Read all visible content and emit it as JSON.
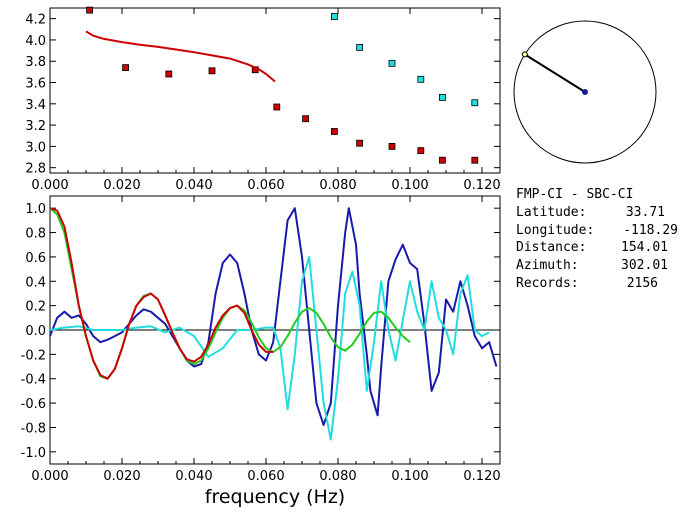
{
  "info": {
    "title": "FMP-CI - SBC-CI",
    "latitude_label": "Latitude:",
    "latitude": "33.71",
    "longitude_label": "Longitude:",
    "longitude": "-118.29",
    "distance_label": "Distance:",
    "distance": "154.01",
    "azimuth_label": "Azimuth:",
    "azimuth": "302.01",
    "records_label": "Records:",
    "records": "2156"
  },
  "compass": {
    "azimuth_deg": 302.01
  },
  "colors": {
    "red": "#cc0000",
    "cyan": "#22dddd",
    "blue": "#1a1aaa",
    "green": "#22cc22",
    "axis": "#000000"
  },
  "chart_data": [
    {
      "type": "scatter",
      "xlim": [
        0,
        0.125
      ],
      "ylim": [
        2.75,
        4.3
      ],
      "xticks": [
        "0.000",
        "0.020",
        "0.040",
        "0.060",
        "0.080",
        "0.100",
        "0.120"
      ],
      "yticks": [
        "2.8",
        "3.0",
        "3.2",
        "3.4",
        "3.6",
        "3.8",
        "4.0",
        "4.2"
      ],
      "series": [
        {
          "color": "red",
          "kind": "points",
          "x": [
            0.011,
            0.021,
            0.033,
            0.045,
            0.057,
            0.063,
            0.071,
            0.079,
            0.086,
            0.095,
            0.103,
            0.109,
            0.118
          ],
          "y": [
            4.28,
            3.74,
            3.68,
            3.71,
            3.72,
            3.37,
            3.26,
            3.14,
            3.03,
            3.0,
            2.96,
            2.87,
            2.87
          ]
        },
        {
          "color": "cyan",
          "kind": "points",
          "x": [
            0.079,
            0.086,
            0.095,
            0.103,
            0.109,
            0.118
          ],
          "y": [
            4.22,
            3.93,
            3.78,
            3.63,
            3.46,
            3.41
          ]
        },
        {
          "color": "red",
          "kind": "line",
          "x": [
            0.01,
            0.012,
            0.015,
            0.02,
            0.025,
            0.03,
            0.035,
            0.04,
            0.045,
            0.05,
            0.055,
            0.058,
            0.06,
            0.0625
          ],
          "y": [
            4.08,
            4.04,
            4.01,
            3.98,
            3.955,
            3.935,
            3.91,
            3.885,
            3.855,
            3.825,
            3.77,
            3.725,
            3.68,
            3.61
          ]
        }
      ]
    },
    {
      "type": "line",
      "xlabel": "frequency (Hz)",
      "xlim": [
        0,
        0.125
      ],
      "ylim": [
        -1.1,
        1.1
      ],
      "xticks": [
        "0.000",
        "0.020",
        "0.040",
        "0.060",
        "0.080",
        "0.100",
        "0.120"
      ],
      "yticks": [
        "-1.0",
        "-0.8",
        "-0.6",
        "-0.4",
        "-0.2",
        "0.0",
        "0.2",
        "0.4",
        "0.6",
        "0.8",
        "1.0"
      ],
      "series": [
        {
          "color": "blue",
          "x": [
            0,
            0.002,
            0.004,
            0.006,
            0.008,
            0.01,
            0.012,
            0.014,
            0.016,
            0.018,
            0.02,
            0.022,
            0.024,
            0.026,
            0.028,
            0.03,
            0.032,
            0.034,
            0.036,
            0.038,
            0.04,
            0.042,
            0.044,
            0.046,
            0.048,
            0.05,
            0.052,
            0.054,
            0.056,
            0.058,
            0.06,
            0.062,
            0.064,
            0.066,
            0.068,
            0.07,
            0.072,
            0.074,
            0.076,
            0.078,
            0.08,
            0.082,
            0.083,
            0.085,
            0.086,
            0.088,
            0.089,
            0.091,
            0.092,
            0.094,
            0.096,
            0.098,
            0.1,
            0.102,
            0.104,
            0.106,
            0.108,
            0.11,
            0.112,
            0.114,
            0.116,
            0.118,
            0.12,
            0.122,
            0.124
          ],
          "y": [
            -0.05,
            0.1,
            0.15,
            0.1,
            0.12,
            0.05,
            -0.05,
            -0.1,
            -0.08,
            -0.05,
            -0.02,
            0.05,
            0.12,
            0.17,
            0.15,
            0.1,
            0.05,
            -0.05,
            -0.15,
            -0.25,
            -0.3,
            -0.28,
            -0.1,
            0.3,
            0.55,
            0.62,
            0.55,
            0.3,
            0.0,
            -0.2,
            -0.25,
            -0.1,
            0.4,
            0.9,
            1.0,
            0.6,
            0.0,
            -0.6,
            -0.78,
            -0.6,
            0.2,
            0.8,
            1.0,
            0.7,
            0.3,
            -0.2,
            -0.5,
            -0.7,
            -0.3,
            0.4,
            0.58,
            0.7,
            0.55,
            0.5,
            0.05,
            -0.5,
            -0.35,
            0.25,
            0.15,
            0.4,
            0.2,
            -0.05,
            -0.15,
            -0.1,
            -0.3
          ]
        },
        {
          "color": "cyan",
          "x": [
            0,
            0.004,
            0.008,
            0.012,
            0.016,
            0.02,
            0.024,
            0.028,
            0.032,
            0.036,
            0.04,
            0.044,
            0.048,
            0.052,
            0.056,
            0.06,
            0.062,
            0.064,
            0.066,
            0.068,
            0.07,
            0.072,
            0.074,
            0.076,
            0.078,
            0.08,
            0.082,
            0.084,
            0.086,
            0.088,
            0.09,
            0.092,
            0.094,
            0.096,
            0.098,
            0.1,
            0.102,
            0.104,
            0.106,
            0.108,
            0.11,
            0.112,
            0.114,
            0.116,
            0.118,
            0.12,
            0.122
          ],
          "y": [
            0.0,
            0.02,
            0.03,
            0.0,
            0.0,
            0.0,
            0.02,
            0.03,
            -0.02,
            0.02,
            -0.05,
            -0.22,
            -0.15,
            0.0,
            0.0,
            0.02,
            0.02,
            -0.15,
            -0.65,
            -0.2,
            0.4,
            0.6,
            0.0,
            -0.6,
            -0.9,
            -0.4,
            0.3,
            0.48,
            0.2,
            -0.5,
            -0.1,
            0.4,
            0.0,
            -0.25,
            0.08,
            0.4,
            0.15,
            0.0,
            0.4,
            0.1,
            0.0,
            -0.2,
            0.3,
            0.45,
            0.0,
            -0.05,
            -0.02
          ]
        },
        {
          "color": "green",
          "x": [
            0,
            0.002,
            0.004,
            0.006,
            0.008,
            0.01,
            0.012,
            0.014,
            0.016,
            0.018,
            0.02,
            0.022,
            0.024,
            0.026,
            0.028,
            0.03,
            0.032,
            0.034,
            0.036,
            0.038,
            0.04,
            0.042,
            0.044,
            0.046,
            0.048,
            0.05,
            0.052,
            0.054,
            0.056,
            0.058,
            0.06,
            0.062,
            0.064,
            0.066,
            0.068,
            0.07,
            0.072,
            0.074,
            0.076,
            0.078,
            0.08,
            0.082,
            0.084,
            0.086,
            0.088,
            0.09,
            0.092,
            0.094,
            0.096,
            0.098,
            0.1
          ],
          "y": [
            1.0,
            0.95,
            0.8,
            0.5,
            0.2,
            -0.05,
            -0.25,
            -0.38,
            -0.4,
            -0.32,
            -0.15,
            0.05,
            0.2,
            0.28,
            0.3,
            0.25,
            0.12,
            -0.02,
            -0.15,
            -0.25,
            -0.28,
            -0.25,
            -0.15,
            -0.02,
            0.1,
            0.18,
            0.2,
            0.16,
            0.06,
            -0.06,
            -0.15,
            -0.18,
            -0.14,
            -0.05,
            0.06,
            0.15,
            0.18,
            0.14,
            0.05,
            -0.06,
            -0.14,
            -0.17,
            -0.12,
            -0.03,
            0.07,
            0.14,
            0.15,
            0.1,
            0.02,
            -0.05,
            -0.1
          ]
        },
        {
          "color": "red",
          "x": [
            0,
            0.002,
            0.004,
            0.006,
            0.008,
            0.01,
            0.012,
            0.014,
            0.016,
            0.018,
            0.02,
            0.022,
            0.024,
            0.026,
            0.028,
            0.03,
            0.032,
            0.034,
            0.036,
            0.038,
            0.04,
            0.042,
            0.044,
            0.046,
            0.048,
            0.05,
            0.052,
            0.054,
            0.056,
            0.058,
            0.06,
            0.062
          ],
          "y": [
            1.0,
            0.98,
            0.85,
            0.55,
            0.2,
            -0.05,
            -0.25,
            -0.37,
            -0.4,
            -0.32,
            -0.15,
            0.05,
            0.2,
            0.27,
            0.3,
            0.25,
            0.12,
            -0.02,
            -0.15,
            -0.24,
            -0.26,
            -0.22,
            -0.12,
            0.02,
            0.12,
            0.18,
            0.2,
            0.14,
            0.0,
            -0.12,
            -0.18,
            -0.18
          ]
        }
      ]
    }
  ]
}
